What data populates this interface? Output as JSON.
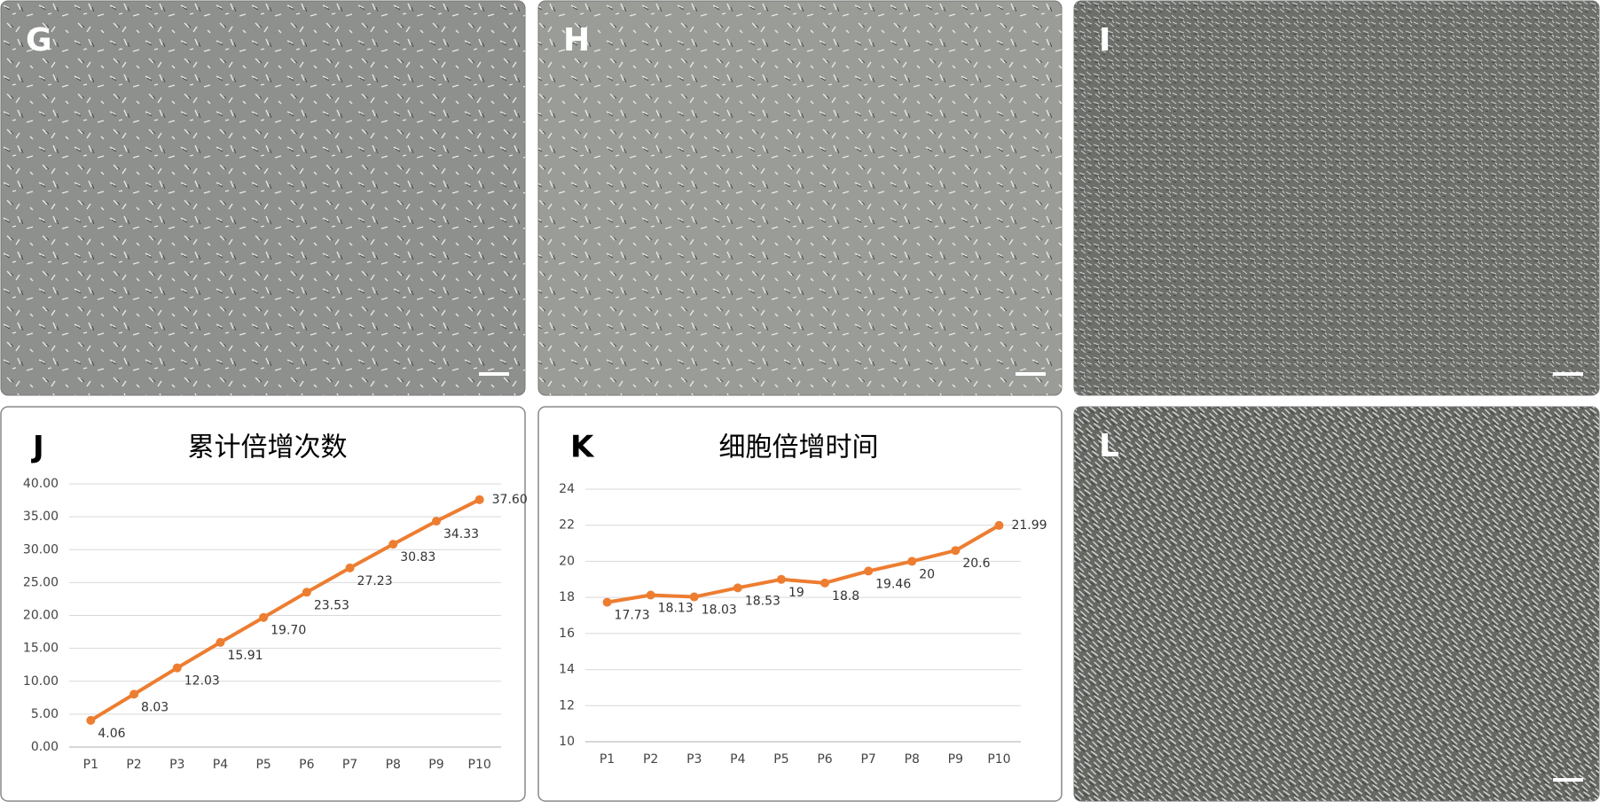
{
  "image_panels": [
    {
      "label": "G"
    },
    {
      "label": "H"
    },
    {
      "label": "I"
    },
    {
      "label": "L"
    }
  ],
  "chart_data": [
    {
      "type": "line",
      "panel_label": "J",
      "title": "累计倍增次数",
      "categories": [
        "P1",
        "P2",
        "P3",
        "P4",
        "P5",
        "P6",
        "P7",
        "P8",
        "P9",
        "P10"
      ],
      "values": [
        4.06,
        8.03,
        12.03,
        15.91,
        19.7,
        23.53,
        27.23,
        30.83,
        34.33,
        37.6
      ],
      "value_labels": [
        "4.06",
        "8.03",
        "12.03",
        "15.91",
        "19.70",
        "23.53",
        "27.23",
        "30.83",
        "34.33",
        "37.60"
      ],
      "color": "#ed7d31",
      "ylim": [
        0,
        40
      ],
      "yticks": [
        {
          "value": 0,
          "label": "0.00"
        },
        {
          "value": 5,
          "label": "5.00"
        },
        {
          "value": 10,
          "label": "10.00"
        },
        {
          "value": 15,
          "label": "15.00"
        },
        {
          "value": 20,
          "label": "20.00"
        },
        {
          "value": 25,
          "label": "25.00"
        },
        {
          "value": 30,
          "label": "30.00"
        },
        {
          "value": 35,
          "label": "35.00"
        },
        {
          "value": 40,
          "label": "40.00"
        }
      ],
      "grid": true
    },
    {
      "type": "line",
      "panel_label": "K",
      "title": "细胞倍增时间",
      "categories": [
        "P1",
        "P2",
        "P3",
        "P4",
        "P5",
        "P6",
        "P7",
        "P8",
        "P9",
        "P10"
      ],
      "values": [
        17.73,
        18.13,
        18.03,
        18.53,
        19,
        18.8,
        19.46,
        20,
        20.6,
        21.99
      ],
      "color": "#ed7d31",
      "ylim": [
        10,
        24
      ],
      "yticks": [
        10,
        12,
        14,
        16,
        18,
        20,
        22,
        24
      ],
      "grid": true
    }
  ]
}
